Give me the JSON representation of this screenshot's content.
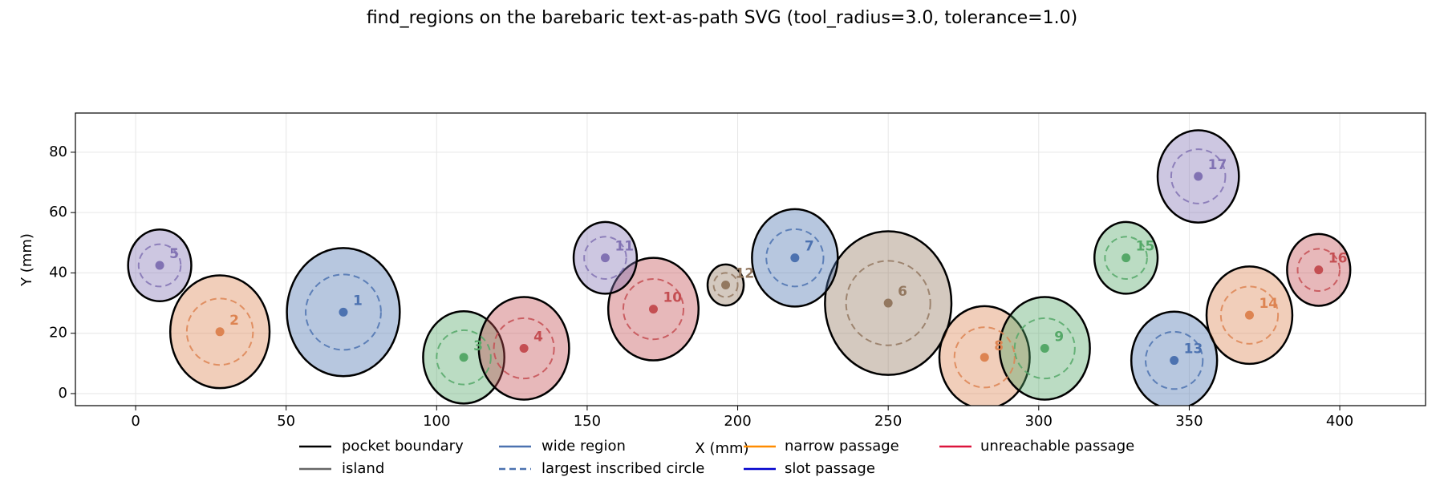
{
  "chart_data": {
    "type": "scatter",
    "title": "find_regions on the barebaric text-as-path SVG (tool_radius=3.0, tolerance=1.0)",
    "x_label": "X (mm)",
    "y_label": "Y (mm)",
    "xlim": [
      -20,
      428.5
    ],
    "ylim": [
      -4,
      93
    ],
    "xticks": [
      0,
      50,
      100,
      150,
      200,
      250,
      300,
      350,
      400
    ],
    "yticks": [
      0,
      20,
      40,
      60,
      80
    ],
    "grid": true,
    "regions": [
      {
        "label": "1",
        "x": 69,
        "y": 27,
        "radius": 12.5,
        "color": "#4c72b0"
      },
      {
        "label": "2",
        "x": 28,
        "y": 20.5,
        "radius": 11,
        "color": "#dd8452"
      },
      {
        "label": "3",
        "x": 109,
        "y": 12,
        "radius": 9,
        "color": "#55a868"
      },
      {
        "label": "4",
        "x": 129,
        "y": 15,
        "radius": 10,
        "color": "#c44e52"
      },
      {
        "label": "5",
        "x": 8,
        "y": 42.5,
        "radius": 7,
        "color": "#8172b3"
      },
      {
        "label": "6",
        "x": 250,
        "y": 30,
        "radius": 14,
        "color": "#937860"
      },
      {
        "label": "7",
        "x": 219,
        "y": 45,
        "radius": 9.5,
        "color": "#4c72b0"
      },
      {
        "label": "8",
        "x": 282,
        "y": 12,
        "radius": 10,
        "color": "#dd8452"
      },
      {
        "label": "9",
        "x": 302,
        "y": 15,
        "radius": 10,
        "color": "#55a868"
      },
      {
        "label": "10",
        "x": 172,
        "y": 28,
        "radius": 10,
        "color": "#c44e52"
      },
      {
        "label": "11",
        "x": 156,
        "y": 45,
        "radius": 7,
        "color": "#8172b3"
      },
      {
        "label": "12",
        "x": 196,
        "y": 36,
        "radius": 4,
        "color": "#937860"
      },
      {
        "label": "13",
        "x": 345,
        "y": 11,
        "radius": 9.5,
        "color": "#4c72b0"
      },
      {
        "label": "14",
        "x": 370,
        "y": 26,
        "radius": 9.5,
        "color": "#dd8452"
      },
      {
        "label": "15",
        "x": 329,
        "y": 45,
        "radius": 7,
        "color": "#55a868"
      },
      {
        "label": "16",
        "x": 393,
        "y": 41,
        "radius": 7,
        "color": "#c44e52"
      },
      {
        "label": "17",
        "x": 353,
        "y": 72,
        "radius": 9,
        "color": "#8172b3"
      }
    ],
    "legend": [
      {
        "name": "pocket boundary",
        "color": "#000000",
        "style": "solid"
      },
      {
        "name": "island",
        "color": "#666666",
        "style": "solid"
      },
      {
        "name": "wide region",
        "color": "#4c72b0",
        "style": "solid"
      },
      {
        "name": "largest inscribed circle",
        "color": "#4c72b0",
        "style": "dashed"
      },
      {
        "name": "narrow passage",
        "color": "#ff8c00",
        "style": "solid"
      },
      {
        "name": "slot passage",
        "color": "#0000cd",
        "style": "solid"
      },
      {
        "name": "unreachable passage",
        "color": "#dc143c",
        "style": "solid"
      }
    ]
  }
}
